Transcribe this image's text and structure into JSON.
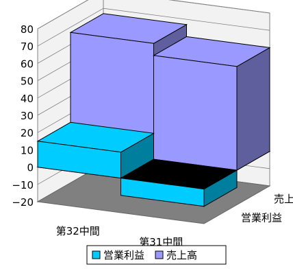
{
  "chart_data": {
    "type": "bar",
    "view": "3d-clustered",
    "title": "",
    "xlabel": "",
    "ylabel": "",
    "ylim": [
      -20,
      80
    ],
    "y_ticks": [
      "80",
      "70",
      "60",
      "50",
      "40",
      "30",
      "20",
      "10",
      "0",
      "−10",
      "−20"
    ],
    "categories": [
      "第32中間",
      "第31中間"
    ],
    "series": [
      {
        "name": "営業利益",
        "values": [
          15,
          -10
        ],
        "color": "#00ccff"
      },
      {
        "name": "売上高",
        "values": [
          67,
          60
        ],
        "color": "#9999ff"
      }
    ],
    "grid": true,
    "legend": "bottom"
  }
}
